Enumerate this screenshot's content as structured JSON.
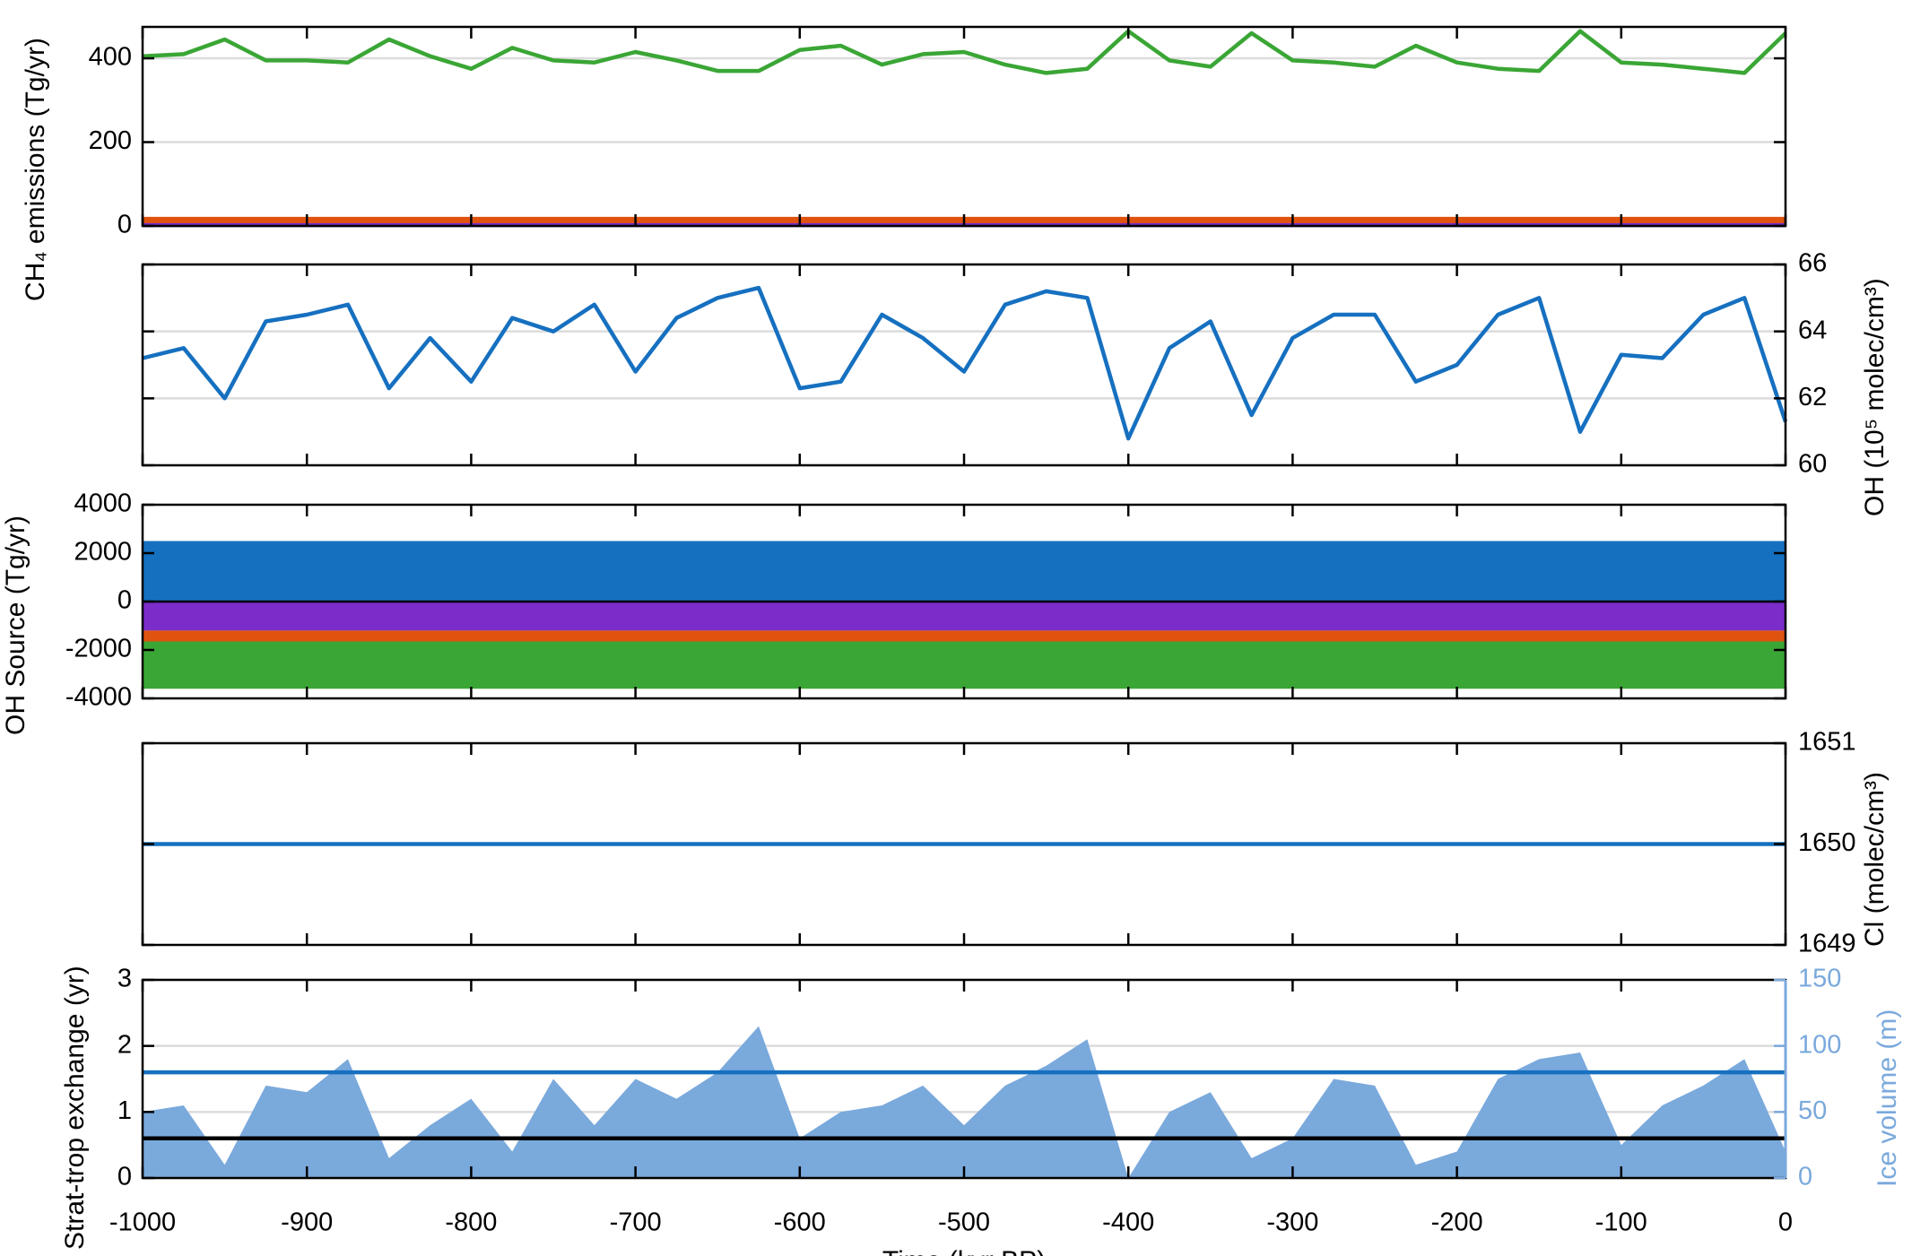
{
  "chart_data": [
    {
      "type": "line",
      "ylabel": "CH₄ emissions (Tg/yr)",
      "y_axis_position": "left",
      "grid": true,
      "x": [
        -1000,
        -975,
        -950,
        -925,
        -900,
        -875,
        -850,
        -825,
        -800,
        -775,
        -750,
        -725,
        -700,
        -675,
        -650,
        -625,
        -600,
        -575,
        -550,
        -525,
        -500,
        -475,
        -450,
        -425,
        -400,
        -375,
        -350,
        -325,
        -300,
        -275,
        -250,
        -225,
        -200,
        -175,
        -150,
        -125,
        -100,
        -75,
        -50,
        -25,
        0
      ],
      "xlim": [
        -1000,
        0
      ],
      "xticks": [
        -1000,
        -900,
        -800,
        -700,
        -600,
        -500,
        -400,
        -300,
        -200,
        -100,
        0
      ],
      "ylim": [
        0,
        475
      ],
      "yticks": [
        0,
        200,
        400
      ],
      "series": [
        {
          "color": "#3aa635",
          "values": [
            405,
            410,
            445,
            395,
            395,
            390,
            445,
            405,
            375,
            425,
            395,
            390,
            415,
            395,
            370,
            370,
            420,
            430,
            385,
            410,
            415,
            385,
            365,
            375,
            465,
            395,
            380,
            460,
            395,
            390,
            380,
            430,
            390,
            375,
            370,
            465,
            390,
            385,
            375,
            365,
            460
          ]
        },
        {
          "color": "#e0530f",
          "values": [
            12,
            12,
            12,
            12,
            12,
            12,
            12,
            12,
            12,
            12,
            12,
            12,
            12,
            12,
            12,
            12,
            12,
            12,
            12,
            12,
            12,
            12,
            12,
            12,
            12,
            12,
            12,
            12,
            12,
            12,
            12,
            12,
            12,
            12,
            12,
            12,
            12,
            12,
            12,
            12,
            12
          ]
        },
        {
          "color": "#7b2cc9",
          "values": [
            2,
            2,
            2,
            2,
            2,
            2,
            2,
            2,
            2,
            2,
            2,
            2,
            2,
            2,
            2,
            2,
            2,
            2,
            2,
            2,
            2,
            2,
            2,
            2,
            2,
            2,
            2,
            2,
            2,
            2,
            2,
            2,
            2,
            2,
            2,
            2,
            2,
            2,
            2,
            2,
            2
          ]
        }
      ]
    },
    {
      "type": "line",
      "ylabel": "OH (10⁵ molec/cm³)",
      "y_axis_position": "right",
      "grid": true,
      "x": [
        -1000,
        -975,
        -950,
        -925,
        -900,
        -875,
        -850,
        -825,
        -800,
        -775,
        -750,
        -725,
        -700,
        -675,
        -650,
        -625,
        -600,
        -575,
        -550,
        -525,
        -500,
        -475,
        -450,
        -425,
        -400,
        -375,
        -350,
        -325,
        -300,
        -275,
        -250,
        -225,
        -200,
        -175,
        -150,
        -125,
        -100,
        -75,
        -50,
        -25,
        0
      ],
      "xlim": [
        -1000,
        0
      ],
      "xticks": [
        -1000,
        -900,
        -800,
        -700,
        -600,
        -500,
        -400,
        -300,
        -200,
        -100,
        0
      ],
      "ylim": [
        60,
        66
      ],
      "yticks": [
        60,
        62,
        64,
        66
      ],
      "series": [
        {
          "color": "#1670c0",
          "values": [
            63.2,
            63.5,
            62.0,
            64.3,
            64.5,
            64.8,
            62.3,
            63.8,
            62.5,
            64.4,
            64.0,
            64.8,
            62.8,
            64.4,
            65.0,
            65.3,
            62.3,
            62.5,
            64.5,
            63.8,
            62.8,
            64.8,
            65.2,
            65.0,
            60.8,
            63.5,
            64.3,
            61.5,
            63.8,
            64.5,
            64.5,
            62.5,
            63.0,
            64.5,
            65.0,
            61.0,
            63.3,
            63.2,
            64.5,
            65.0,
            61.3
          ]
        }
      ]
    },
    {
      "type": "stacked_area",
      "ylabel": "OH Source (Tg/yr)",
      "y_axis_position": "left",
      "grid": false,
      "x": [
        -1000,
        0
      ],
      "xlim": [
        -1000,
        0
      ],
      "xticks": [
        -1000,
        -900,
        -800,
        -700,
        -600,
        -500,
        -400,
        -300,
        -200,
        -100,
        0
      ],
      "ylim": [
        -4000,
        4000
      ],
      "yticks": [
        -4000,
        -2000,
        0,
        2000,
        4000
      ],
      "series": [
        {
          "color": "#1670c0",
          "values": [
            2500,
            2500
          ]
        },
        {
          "color": "#7b2cc9",
          "values": [
            -1200,
            -1200
          ]
        },
        {
          "color": "#e0530f",
          "values": [
            -450,
            -450
          ]
        },
        {
          "color": "#3aa635",
          "values": [
            -1950,
            -1950
          ]
        }
      ]
    },
    {
      "type": "line",
      "ylabel": "Cl (molec/cm³)",
      "y_axis_position": "right",
      "grid": false,
      "x": [
        -1000,
        0
      ],
      "xlim": [
        -1000,
        0
      ],
      "xticks": [
        -1000,
        -900,
        -800,
        -700,
        -600,
        -500,
        -400,
        -300,
        -200,
        -100,
        0
      ],
      "ylim": [
        1649,
        1651
      ],
      "yticks": [
        1649,
        1650,
        1651
      ],
      "series": [
        {
          "color": "#1670c0",
          "values": [
            1650,
            1650
          ]
        }
      ]
    },
    {
      "type": "line",
      "ylabel": "Strat-trop exchange (yr)",
      "y_axis_position": "left",
      "grid": true,
      "y2label": "Ice volume (m)",
      "y2color": "#7aa9dc",
      "xlabel": "Time (kyr BP)",
      "x": [
        -1000,
        -975,
        -950,
        -925,
        -900,
        -875,
        -850,
        -825,
        -800,
        -775,
        -750,
        -725,
        -700,
        -675,
        -650,
        -625,
        -600,
        -575,
        -550,
        -525,
        -500,
        -475,
        -450,
        -425,
        -400,
        -375,
        -350,
        -325,
        -300,
        -275,
        -250,
        -225,
        -200,
        -175,
        -150,
        -125,
        -100,
        -75,
        -50,
        -25,
        0
      ],
      "xlim": [
        -1000,
        0
      ],
      "xticks": [
        -1000,
        -900,
        -800,
        -700,
        -600,
        -500,
        -400,
        -300,
        -200,
        -100,
        0
      ],
      "ylim": [
        0,
        3
      ],
      "yticks": [
        0,
        1,
        2,
        3
      ],
      "y2lim": [
        0,
        150
      ],
      "y2ticks": [
        0,
        50,
        100,
        150
      ],
      "series": [
        {
          "type": "area",
          "axis": "y2",
          "color": "#7aa9dc",
          "values": [
            50,
            55,
            10,
            70,
            65,
            90,
            15,
            40,
            60,
            20,
            75,
            40,
            75,
            60,
            80,
            115,
            30,
            50,
            55,
            70,
            40,
            70,
            85,
            105,
            0,
            50,
            65,
            15,
            30,
            75,
            70,
            10,
            20,
            75,
            90,
            95,
            25,
            55,
            70,
            90,
            20
          ]
        },
        {
          "color": "#000000",
          "values": [
            0.6,
            0.6,
            0.6,
            0.6,
            0.6,
            0.6,
            0.6,
            0.6,
            0.6,
            0.6,
            0.6,
            0.6,
            0.6,
            0.6,
            0.6,
            0.6,
            0.6,
            0.6,
            0.6,
            0.6,
            0.6,
            0.6,
            0.6,
            0.6,
            0.6,
            0.6,
            0.6,
            0.6,
            0.6,
            0.6,
            0.6,
            0.6,
            0.6,
            0.6,
            0.6,
            0.6,
            0.6,
            0.6,
            0.6,
            0.6,
            0.6
          ]
        },
        {
          "color": "#1670c0",
          "values": [
            1.6,
            1.6,
            1.6,
            1.6,
            1.6,
            1.6,
            1.6,
            1.6,
            1.6,
            1.6,
            1.6,
            1.6,
            1.6,
            1.6,
            1.6,
            1.6,
            1.6,
            1.6,
            1.6,
            1.6,
            1.6,
            1.6,
            1.6,
            1.6,
            1.6,
            1.6,
            1.6,
            1.6,
            1.6,
            1.6,
            1.6,
            1.6,
            1.6,
            1.6,
            1.6,
            1.6,
            1.6,
            1.6,
            1.6,
            1.6,
            1.6
          ]
        }
      ]
    }
  ]
}
